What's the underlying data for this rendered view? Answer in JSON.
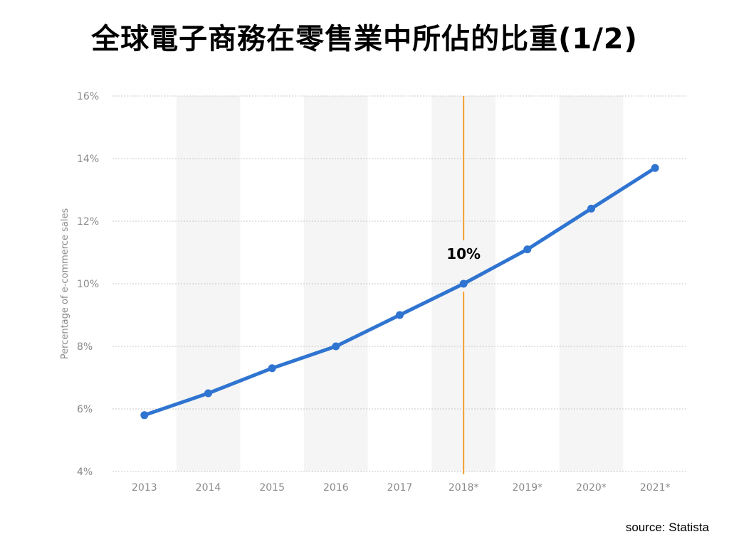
{
  "slide": {
    "title": "全球電子商務在零售業中所佔的比重(1/2)",
    "source": "source: Statista"
  },
  "chart_data": {
    "type": "line",
    "x": [
      "2013",
      "2014",
      "2015",
      "2016",
      "2017",
      "2018*",
      "2019*",
      "2020*",
      "2021*"
    ],
    "series": [
      {
        "values": [
          5.8,
          6.5,
          7.3,
          8.0,
          9.0,
          10.0,
          11.1,
          12.4,
          13.7
        ]
      }
    ],
    "ylabel": "Percentage of e-commerce sales",
    "y_ticks": [
      "4%",
      "6%",
      "8%",
      "10%",
      "12%",
      "14%",
      "16%"
    ],
    "ylim": [
      4,
      16
    ],
    "grid": true,
    "highlight": {
      "x": "2018*",
      "label": "10%"
    },
    "colors": {
      "line": "#2f74d0",
      "highlight": "#f0a030",
      "band": "#f5f5f5",
      "grid": "#c8c8c8",
      "tick_text": "#8a8a8a"
    }
  }
}
